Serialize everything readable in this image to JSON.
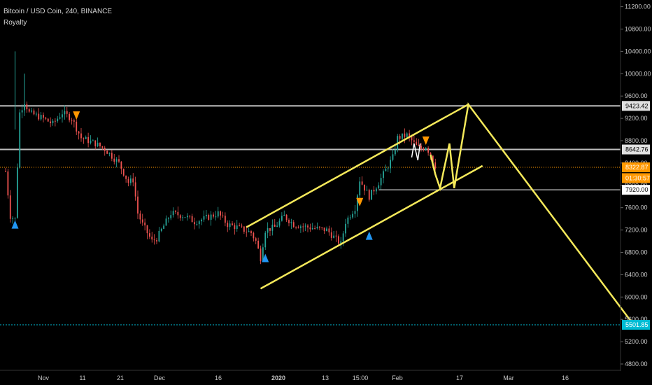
{
  "header": {
    "symbol": "Bitcoin / USD Coin, 240, BINANCE",
    "indicator": "Royalty"
  },
  "colors": {
    "background": "#000000",
    "up": "#26a69a",
    "down": "#ef5350",
    "channel": "#f5e95a",
    "level_line": "#bdbdbd",
    "current_price": "#ff9800",
    "target": "#00bcd4",
    "marker_buy": "#2196f3",
    "marker_sell": "#ff9800"
  },
  "chart_data": {
    "type": "candlestick",
    "y_axis": {
      "ticks": [
        "11200.00",
        "10800.00",
        "10400.00",
        "10000.00",
        "9600.00",
        "9200.00",
        "8800.00",
        "8400.00",
        "8000.00",
        "7600.00",
        "7200.00",
        "6800.00",
        "6400.00",
        "6000.00",
        "5600.00",
        "5200.00",
        "4800.00"
      ],
      "ylim": [
        4700,
        11600
      ]
    },
    "x_axis": {
      "ticks": [
        "Nov",
        "11",
        "21",
        "Dec",
        "16",
        "2020",
        "13",
        "15:00",
        "Feb",
        "17",
        "Mar",
        "16"
      ],
      "bold": [
        "2020"
      ]
    },
    "price_labels": [
      {
        "text": "9423.42",
        "value": 9423.42,
        "style": "level"
      },
      {
        "text": "8642.76",
        "value": 8642.76,
        "style": "level"
      },
      {
        "text": "8322.87",
        "value": 8322.87,
        "style": "current"
      },
      {
        "text": "01:30:57",
        "value": 8130,
        "style": "countdown"
      },
      {
        "text": "7920.00",
        "value": 7920,
        "style": "white"
      },
      {
        "text": "5501.85",
        "value": 5501.85,
        "style": "target"
      }
    ],
    "markers": [
      {
        "type": "buy",
        "x": "Oct 26",
        "y": 7300
      },
      {
        "type": "sell",
        "x": "Nov 8",
        "y": 9250
      },
      {
        "type": "buy",
        "x": "Dec 18",
        "y": 6700
      },
      {
        "type": "sell",
        "x": "Jan 7",
        "y": 7700
      },
      {
        "type": "buy",
        "x": "Jan 9",
        "y": 7100
      },
      {
        "type": "sell",
        "x": "Jan 21",
        "y": 8800
      }
    ]
  }
}
